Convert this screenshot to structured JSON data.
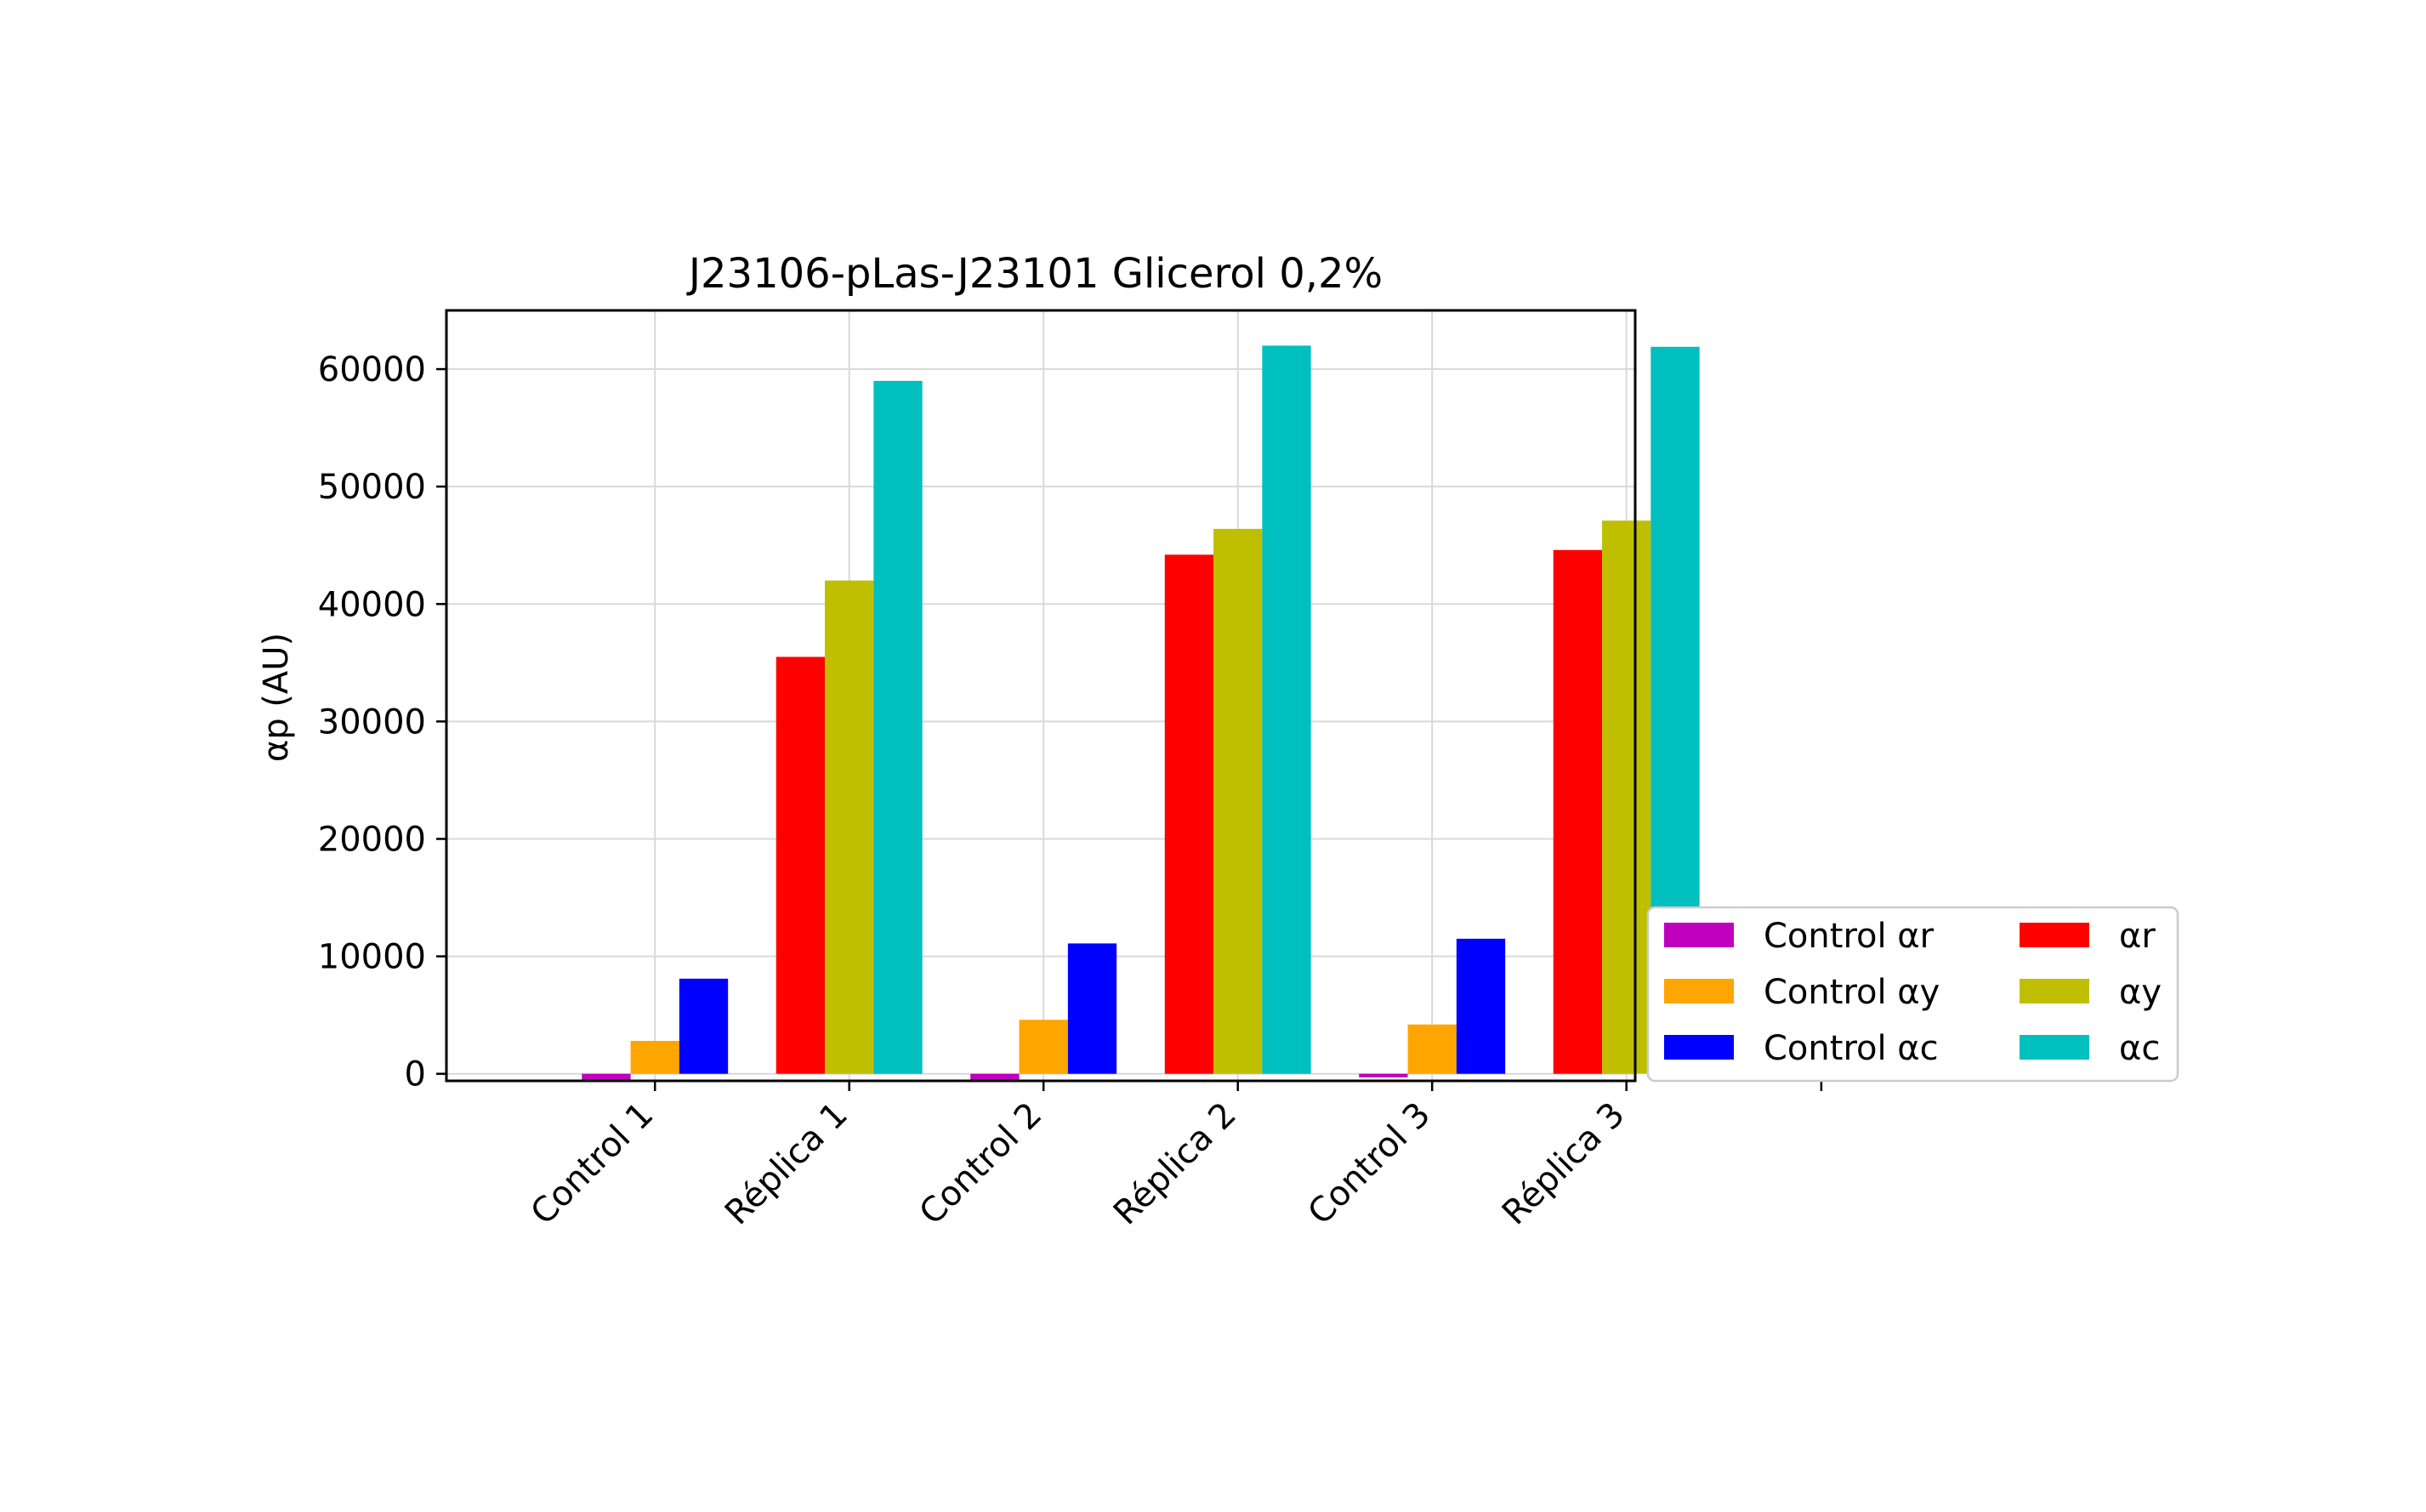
{
  "chart_data": {
    "type": "bar",
    "title": "J23106-pLas-J23101 Glicerol 0,2%",
    "xlabel": "",
    "ylabel": "αp (AU)",
    "categories": [
      "Control 1",
      "Réplica 1",
      "Control 2",
      "Réplica 2",
      "Control 3",
      "Réplica 3"
    ],
    "ylim": [
      -600,
      65000
    ],
    "yticks": [
      0,
      10000,
      20000,
      30000,
      40000,
      50000,
      60000
    ],
    "grid": true,
    "legend_position": "outside right, bottom",
    "legend_columns": 2,
    "series": [
      {
        "name": "Control αr",
        "color": "#bf00bf",
        "values": [
          -500,
          null,
          -500,
          null,
          -300,
          null
        ]
      },
      {
        "name": "Control αy",
        "color": "#ffa500",
        "values": [
          2800,
          null,
          4600,
          null,
          4200,
          null
        ]
      },
      {
        "name": "Control αc",
        "color": "#0000ff",
        "values": [
          8100,
          null,
          11100,
          null,
          11500,
          null
        ]
      },
      {
        "name": "αr",
        "color": "#ff0000",
        "values": [
          null,
          35500,
          null,
          44200,
          null,
          44600
        ]
      },
      {
        "name": "αy",
        "color": "#bfbf00",
        "values": [
          null,
          42000,
          null,
          46400,
          null,
          47100
        ]
      },
      {
        "name": "αc",
        "color": "#00bfbf",
        "values": [
          null,
          59000,
          null,
          62000,
          null,
          61900
        ]
      }
    ],
    "legend_order": [
      0,
      3,
      1,
      4,
      2,
      5
    ]
  }
}
